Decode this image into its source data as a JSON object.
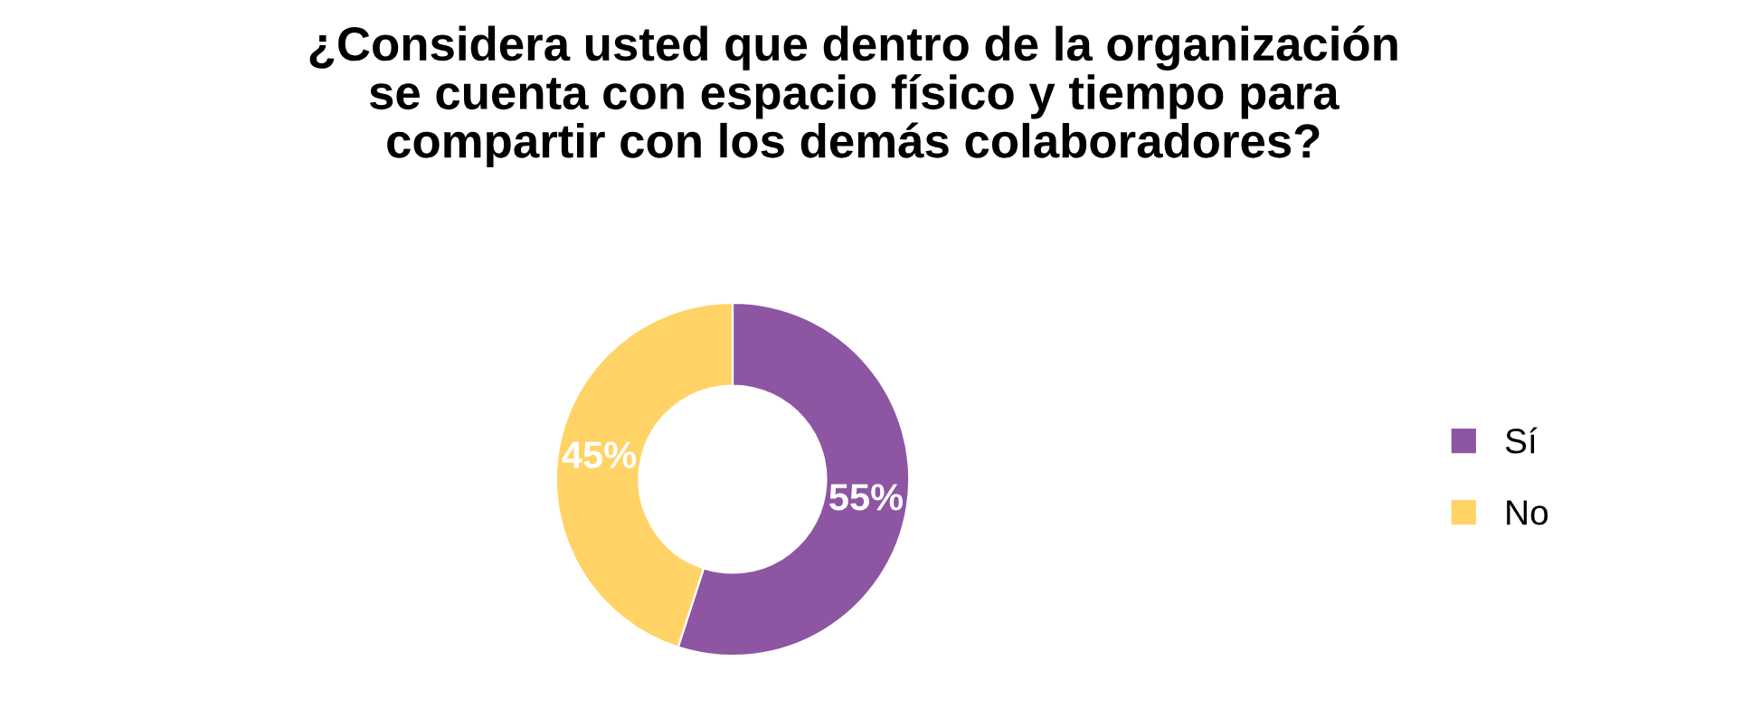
{
  "chart_data": {
    "type": "donut",
    "title": "¿Considera usted que dentro de la organización\nse cuenta con espacio físico y tiempo para\ncompartir con los demás colaboradores?",
    "categories": [
      "Sí",
      "No"
    ],
    "values": [
      55,
      45
    ],
    "colors": [
      "#8e55a3",
      "#ffd366"
    ],
    "value_labels": [
      "55%",
      "45%"
    ],
    "legend": "right"
  }
}
